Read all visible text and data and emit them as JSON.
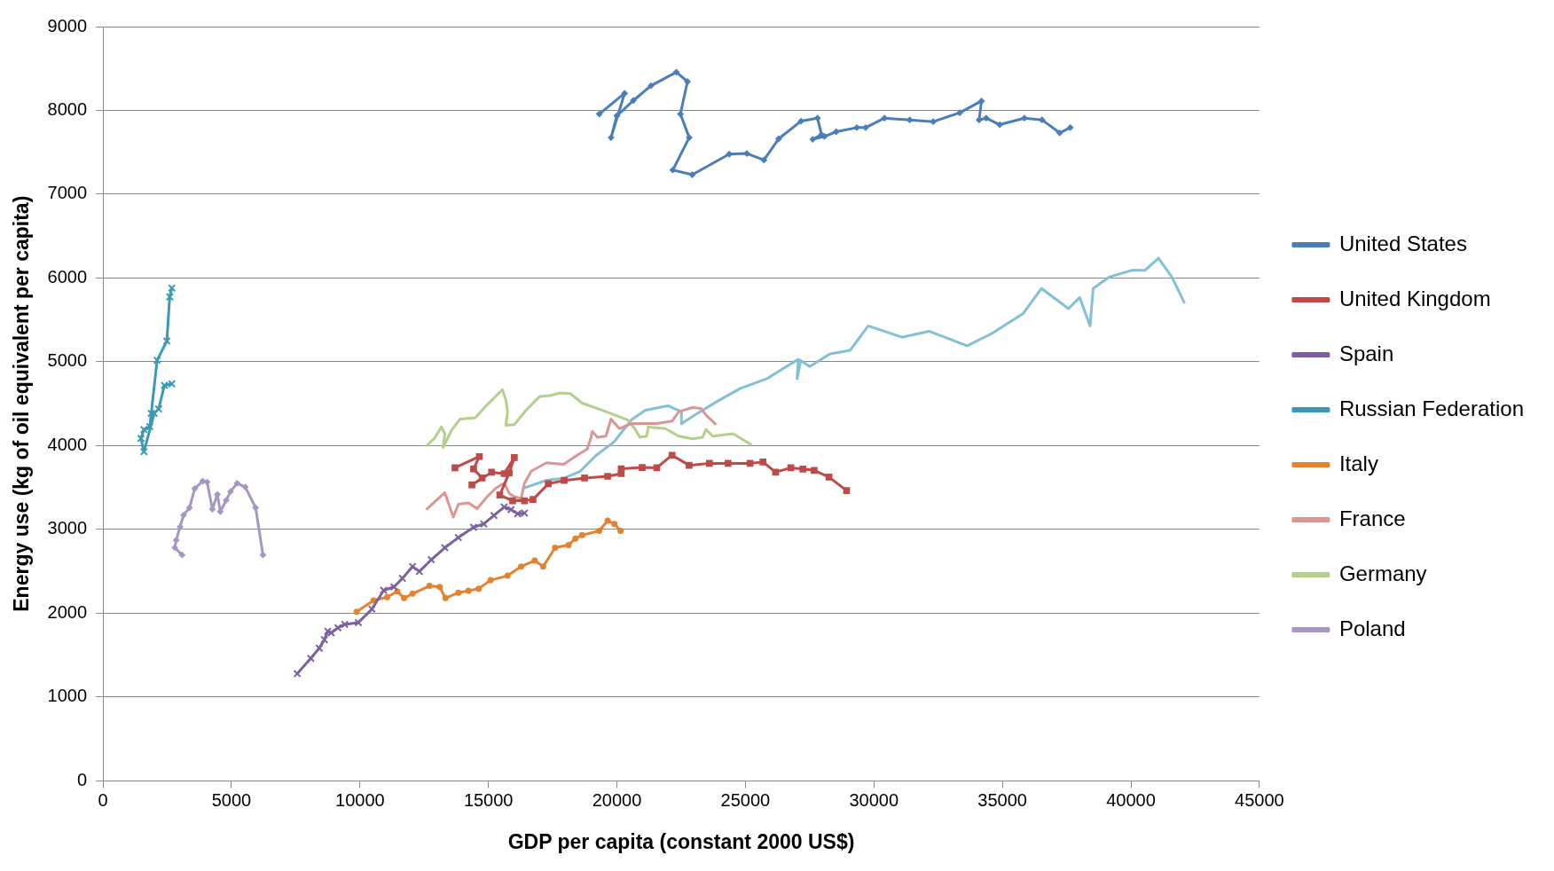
{
  "chart_data": {
    "type": "line",
    "xlabel": "GDP per capita (constant 2000 US$)",
    "ylabel": "Energy use (kg of oil equivalent per capita)",
    "xlim": [
      0,
      45000
    ],
    "ylim": [
      0,
      9000
    ],
    "xticks": [
      0,
      5000,
      10000,
      15000,
      20000,
      25000,
      30000,
      35000,
      40000,
      45000
    ],
    "yticks": [
      0,
      1000,
      2000,
      3000,
      4000,
      5000,
      6000,
      7000,
      8000,
      9000
    ],
    "grid": "y",
    "legend": "right",
    "line_style": "solid",
    "series": [
      {
        "name": "United States",
        "color": "#4a7ebb",
        "marker": "diamond",
        "x": [
          19312,
          20297,
          19771,
          19998,
          20640,
          21326,
          22311,
          22744,
          22469,
          22812,
          22174,
          22929,
          24370,
          25056,
          25719,
          26292,
          27161,
          27803,
          27961,
          27618,
          28076,
          28533,
          29333,
          29677,
          30411,
          31393,
          32308,
          33338,
          34186,
          34094,
          34368,
          34894,
          35855,
          36541,
          37227,
          37639
        ],
        "values": [
          7957,
          8204,
          7676,
          7936,
          8119,
          8295,
          8457,
          8344,
          7957,
          7676,
          7289,
          7233,
          7479,
          7486,
          7408,
          7661,
          7872,
          7908,
          7711,
          7655,
          7690,
          7746,
          7795,
          7795,
          7908,
          7887,
          7866,
          7972,
          8112,
          7887,
          7908,
          7830,
          7908,
          7887,
          7732,
          7795
        ]
      },
      {
        "name": "United Kingdom",
        "color": "#be4b48",
        "marker": "square",
        "x": [
          13697,
          14648,
          14421,
          14754,
          14356,
          15121,
          15612,
          16007,
          15808,
          15441,
          15942,
          16402,
          16734,
          17328,
          17946,
          18739,
          19638,
          20166,
          20166,
          20983,
          21550,
          22143,
          22806,
          23598,
          24323,
          25180,
          25682,
          26172,
          26766,
          27236,
          27676,
          28252,
          28935
        ],
        "values": [
          3736,
          3870,
          3723,
          3614,
          3532,
          3683,
          3666,
          3858,
          3675,
          3411,
          3342,
          3342,
          3358,
          3545,
          3585,
          3614,
          3634,
          3666,
          3723,
          3739,
          3736,
          3886,
          3765,
          3789,
          3789,
          3789,
          3805,
          3683,
          3736,
          3721,
          3705,
          3625,
          3464
        ]
      },
      {
        "name": "Spain",
        "color": "#7d60a0",
        "marker": "cross",
        "x": [
          7557,
          8086,
          8416,
          8614,
          8748,
          8879,
          9143,
          9407,
          9936,
          10464,
          10924,
          11322,
          11652,
          12046,
          12311,
          12774,
          13302,
          13828,
          14421,
          14819,
          15214,
          15612,
          15876,
          16137,
          16402
        ],
        "values": [
          1279,
          1462,
          1584,
          1685,
          1786,
          1766,
          1827,
          1868,
          1889,
          2050,
          2274,
          2314,
          2416,
          2558,
          2498,
          2639,
          2782,
          2903,
          3026,
          3066,
          3167,
          3268,
          3237,
          3187,
          3196
        ]
      },
      {
        "name": "Russian Federation",
        "color": "#3a9ab5",
        "marker": "cross",
        "x": [
          2680,
          2598,
          2485,
          2107,
          1877,
          1822,
          1593,
          1479,
          1593,
          1994,
          2165,
          2392,
          2680
        ],
        "values": [
          5881,
          5776,
          5248,
          5019,
          4385,
          4227,
          4192,
          4087,
          3928,
          4385,
          4438,
          4720,
          4737
        ]
      },
      {
        "name": "Italy",
        "color": "#e3822f",
        "marker": "circle",
        "x": [
          9870,
          10529,
          11058,
          11453,
          11717,
          12046,
          12705,
          13103,
          13326,
          13828,
          14226,
          14620,
          15084,
          15743,
          16271,
          16800,
          17129,
          17592,
          18118,
          18382,
          18646,
          19308,
          19638,
          19902,
          20139
        ],
        "values": [
          2018,
          2153,
          2193,
          2261,
          2181,
          2234,
          2327,
          2314,
          2181,
          2245,
          2270,
          2294,
          2395,
          2448,
          2558,
          2628,
          2558,
          2782,
          2815,
          2892,
          2932,
          2984,
          3106,
          3066,
          2984
        ]
      },
      {
        "name": "France",
        "color": "#d99694",
        "marker": "none",
        "x": [
          12575,
          13302,
          13632,
          13828,
          14226,
          14555,
          14950,
          15279,
          15612,
          15808,
          16007,
          16271,
          16402,
          16666,
          17260,
          17922,
          18516,
          18845,
          18976,
          19044,
          19240,
          19569,
          19768,
          20098,
          20561,
          21090,
          21550,
          22143,
          22408,
          22936,
          23266,
          23465,
          23859
        ],
        "values": [
          3237,
          3439,
          3147,
          3301,
          3317,
          3248,
          3391,
          3492,
          3553,
          3431,
          3391,
          3370,
          3553,
          3695,
          3796,
          3776,
          3898,
          3959,
          4081,
          4170,
          4101,
          4113,
          4317,
          4203,
          4264,
          4264,
          4264,
          4292,
          4405,
          4454,
          4444,
          4365,
          4251
        ]
      },
      {
        "name": "Germany",
        "color": "#b3cf8a",
        "marker": "none",
        "x": [
          12575,
          12904,
          13169,
          13302,
          13234,
          13563,
          13896,
          14490,
          14885,
          15544,
          15677,
          15743,
          15677,
          16007,
          16470,
          16995,
          17393,
          17788,
          18186,
          18646,
          19504,
          20427,
          20692,
          20891,
          21155,
          21220,
          21882,
          22408,
          22936,
          23334,
          23465,
          23729,
          24522,
          25246
        ],
        "values": [
          3992,
          4089,
          4223,
          4142,
          3979,
          4183,
          4317,
          4333,
          4467,
          4669,
          4548,
          4405,
          4243,
          4251,
          4425,
          4588,
          4597,
          4629,
          4621,
          4507,
          4414,
          4304,
          4203,
          4101,
          4113,
          4223,
          4203,
          4113,
          4081,
          4101,
          4194,
          4113,
          4142,
          4007
        ]
      },
      {
        "name": "Poland",
        "color": "#a597c2",
        "marker": "diamond",
        "x": [
          3079,
          2794,
          2851,
          3000,
          3137,
          3366,
          3572,
          3881,
          4052,
          4258,
          4452,
          4567,
          4795,
          4966,
          5220,
          5539,
          5941,
          6226
        ],
        "values": [
          2696,
          2784,
          2872,
          3031,
          3171,
          3259,
          3488,
          3576,
          3565,
          3242,
          3417,
          3214,
          3348,
          3453,
          3551,
          3506,
          3259,
          2696
        ]
      },
      {
        "color": "#82c0d6",
        "marker": "none",
        "x": [
          16347,
          17256,
          17956,
          18571,
          19185,
          19885,
          20585,
          21110,
          21985,
          22510,
          22510,
          23036,
          23911,
          24786,
          25836,
          26536,
          27061,
          27010,
          27151,
          27501,
          28290,
          29076,
          29776,
          31090,
          32141,
          33630,
          34591,
          35816,
          36520,
          37570,
          38006,
          38411,
          38531,
          39145,
          40021,
          40546,
          41071,
          41596,
          42087
        ],
        "values": [
          3490,
          3587,
          3614,
          3695,
          3883,
          4045,
          4315,
          4422,
          4476,
          4405,
          4261,
          4368,
          4530,
          4681,
          4799,
          4933,
          5030,
          4799,
          5015,
          4945,
          5095,
          5138,
          5429,
          5294,
          5365,
          5192,
          5338,
          5580,
          5876,
          5634,
          5768,
          5429,
          5876,
          6011,
          6091,
          6091,
          6237,
          6011,
          5699
        ]
      }
    ]
  }
}
